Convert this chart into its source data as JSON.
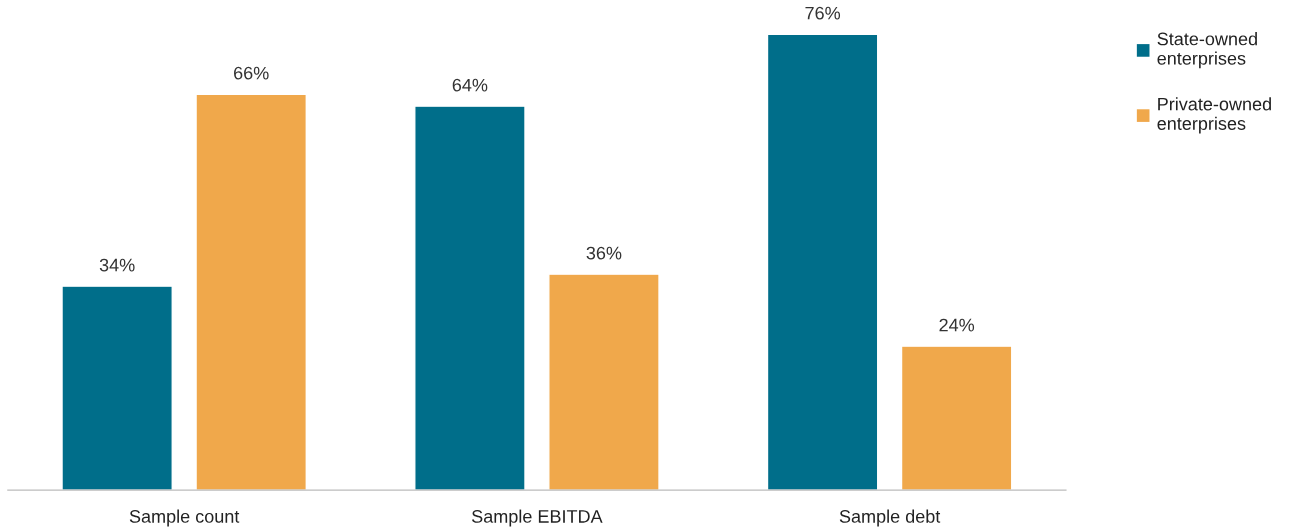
{
  "chart_data": {
    "type": "bar",
    "categories": [
      "Sample count",
      "Sample EBITDA",
      "Sample debt"
    ],
    "series": [
      {
        "name": "State-owned\nenterprises",
        "color": "#006e8a",
        "values": [
          34,
          64,
          76
        ],
        "value_labels": [
          "34%",
          "64%",
          "76%"
        ]
      },
      {
        "name": "Private-owned\nenterprises",
        "color": "#f0a84b",
        "values": [
          66,
          36,
          24
        ],
        "value_labels": [
          "66%",
          "36%",
          "24%"
        ]
      }
    ],
    "legend": "top right",
    "grid": false,
    "tick_labels": "x"
  }
}
